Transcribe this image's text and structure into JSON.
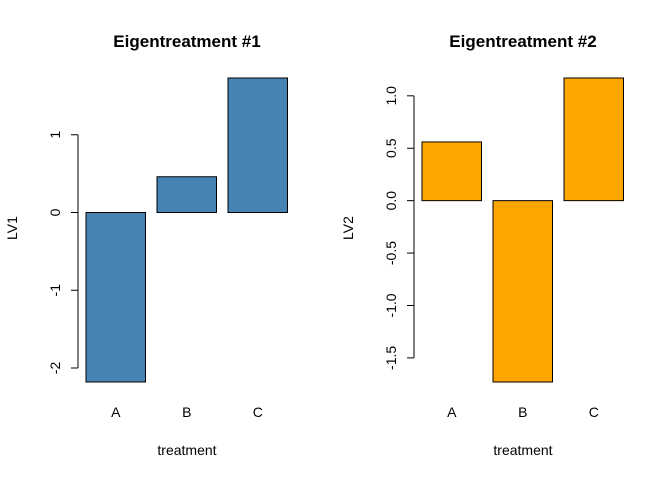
{
  "chart_data": [
    {
      "type": "bar",
      "title": "Eigentreatment #1",
      "xlabel": "treatment",
      "ylabel": "LV1",
      "categories": [
        "A",
        "B",
        "C"
      ],
      "values": [
        -2.18,
        0.46,
        1.73
      ],
      "ylim": [
        -2.18,
        1.73
      ],
      "yticks": [
        -2,
        -1,
        0,
        1
      ],
      "ytick_labels": [
        "-2",
        "-1",
        "0",
        "1"
      ],
      "color": "#4682B4",
      "grid": false,
      "legend": "none"
    },
    {
      "type": "bar",
      "title": "Eigentreatment #2",
      "xlabel": "treatment",
      "ylabel": "LV2",
      "categories": [
        "A",
        "B",
        "C"
      ],
      "values": [
        0.56,
        -1.73,
        1.17
      ],
      "ylim": [
        -1.73,
        1.17
      ],
      "yticks": [
        -1.5,
        -1.0,
        -0.5,
        0.0,
        0.5,
        1.0
      ],
      "ytick_labels": [
        "-1.5",
        "-1.0",
        "-0.5",
        "0.0",
        "0.5",
        "1.0"
      ],
      "color": "#FFA500",
      "grid": false,
      "legend": "none"
    }
  ]
}
